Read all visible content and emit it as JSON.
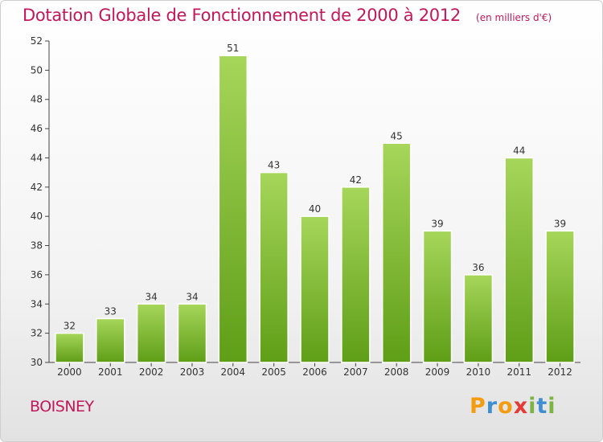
{
  "title": "Dotation Globale de Fonctionnement de 2000 à 2012",
  "subtitle": "(en milliers d'€)",
  "place": "BOISNEY",
  "brand": {
    "letters": [
      "P",
      "r",
      "o",
      "x",
      "i",
      "t",
      "i"
    ],
    "colors": [
      "#f39c12",
      "#3e8ed0",
      "#f39c12",
      "#e53935",
      "#7cb342",
      "#3e8ed0",
      "#7cb342"
    ]
  },
  "colors": {
    "bar_top": "#a6d65a",
    "bar_bottom": "#5f9e17",
    "title": "#c2185b"
  },
  "chart_data": {
    "type": "bar",
    "categories": [
      "2000",
      "2001",
      "2002",
      "2003",
      "2004",
      "2005",
      "2006",
      "2007",
      "2008",
      "2009",
      "2010",
      "2011",
      "2012"
    ],
    "values": [
      32,
      33,
      34,
      34,
      51,
      43,
      40,
      42,
      45,
      39,
      36,
      44,
      39
    ],
    "data_labels": [
      "32",
      "33",
      "34",
      "34",
      "51",
      "43",
      "40",
      "42",
      "45",
      "39",
      "36",
      "44",
      "39"
    ],
    "ylim": [
      30,
      52
    ],
    "yticks": [
      30,
      32,
      34,
      36,
      38,
      40,
      42,
      44,
      46,
      48,
      50,
      52
    ],
    "grid": false,
    "xlabel": "",
    "ylabel": ""
  }
}
